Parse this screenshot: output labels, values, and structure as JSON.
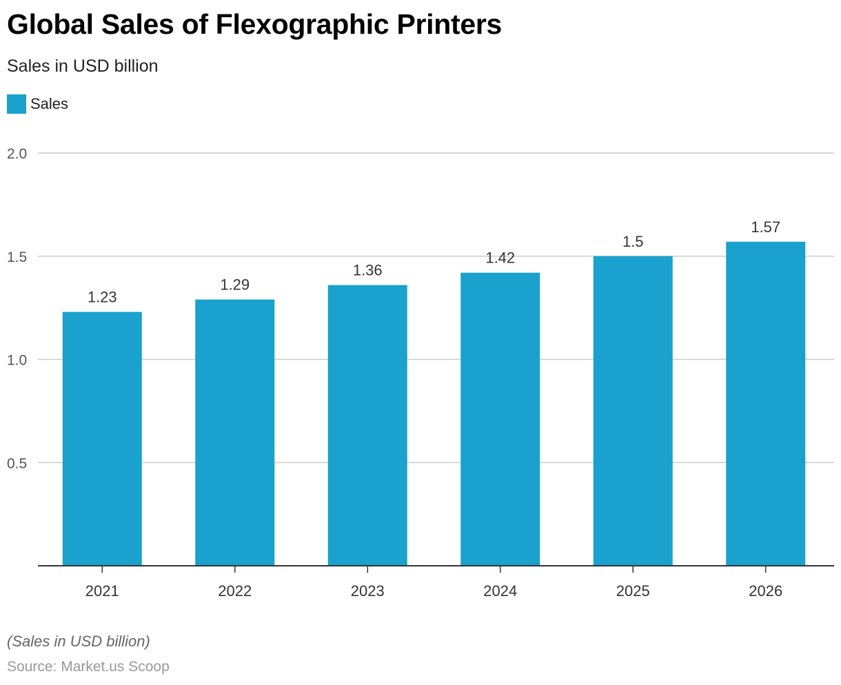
{
  "chart_data": {
    "type": "bar",
    "title": "Global Sales of Flexographic Printers",
    "subtitle": "Sales in USD billion",
    "categories": [
      "2021",
      "2022",
      "2023",
      "2024",
      "2025",
      "2026"
    ],
    "series": [
      {
        "name": "Sales",
        "values": [
          1.23,
          1.29,
          1.36,
          1.42,
          1.5,
          1.57
        ],
        "value_labels": [
          "1.23",
          "1.29",
          "1.36",
          "1.42",
          "1.5",
          "1.57"
        ],
        "color": "#1aa1cd"
      }
    ],
    "ylim": [
      0,
      2.0
    ],
    "yticks": [
      0.5,
      1.0,
      1.5,
      2.0
    ],
    "ytick_labels": [
      "0.5",
      "1.0",
      "1.5",
      "2.0"
    ],
    "grid": true,
    "legend_position": "top-left",
    "note": "(Sales in USD billion)",
    "source": "Source: Market.us Scoop"
  },
  "colors": {
    "bar": "#1aa1cd",
    "grid": "#cccccc",
    "axis": "#333333"
  }
}
